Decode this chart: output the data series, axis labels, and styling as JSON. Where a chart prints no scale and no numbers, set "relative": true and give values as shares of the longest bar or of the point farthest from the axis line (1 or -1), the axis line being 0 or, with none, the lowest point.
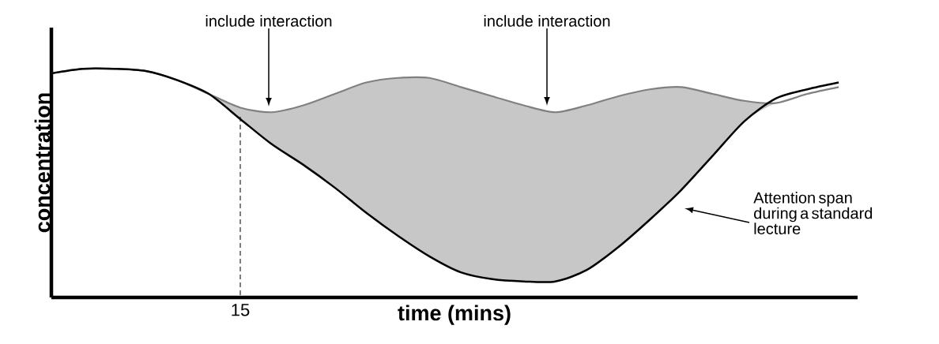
{
  "chart_data": {
    "type": "line",
    "relative": true,
    "xlabel": "time (mins)",
    "ylabel": "concentration",
    "categories": [
      null,
      null,
      null,
      null,
      null,
      null,
      null,
      null,
      null,
      null,
      null,
      null,
      null,
      null,
      null,
      null,
      null,
      null,
      null,
      null,
      null,
      null,
      null,
      null,
      null,
      null
    ],
    "series": [
      {
        "color": "#808080",
        "values": [
          0.98,
          1.0,
          1.0,
          0.99,
          0.95,
          0.89,
          0.83,
          0.81,
          0.84,
          0.89,
          0.94,
          0.96,
          0.96,
          0.92,
          0.88,
          0.84,
          0.81,
          0.84,
          0.88,
          0.91,
          0.92,
          0.89,
          0.86,
          0.85,
          0.89,
          0.92
        ],
        "lower": [
          0.98,
          1.0,
          1.0,
          0.99,
          0.95,
          0.89,
          0.78,
          0.67,
          0.58,
          0.48,
          0.37,
          0.27,
          0.18,
          0.11,
          0.08,
          0.07,
          0.07,
          0.12,
          0.22,
          0.34,
          0.47,
          0.62,
          0.77,
          0.85,
          0.89,
          0.92
        ],
        "upper": [
          0.98,
          1.0,
          1.0,
          0.99,
          0.95,
          0.89,
          0.83,
          0.81,
          0.84,
          0.89,
          0.94,
          0.96,
          0.96,
          0.92,
          0.88,
          0.84,
          0.81,
          0.84,
          0.88,
          0.91,
          0.92,
          0.89,
          0.86,
          0.85,
          0.89,
          0.92
        ]
      },
      {
        "color": "#000000",
        "values": [
          0.98,
          1.0,
          1.0,
          0.99,
          0.95,
          0.89,
          0.78,
          0.67,
          0.58,
          0.48,
          0.37,
          0.27,
          0.18,
          0.11,
          0.08,
          0.07,
          0.07,
          0.12,
          0.22,
          0.34,
          0.47,
          0.62,
          0.77,
          0.87,
          0.91,
          0.94
        ]
      }
    ],
    "annotations": [
      "15",
      "include interaction",
      "include interaction",
      "Attention span during a standard lecture"
    ],
    "marker": "none",
    "line_style": "solid"
  }
}
